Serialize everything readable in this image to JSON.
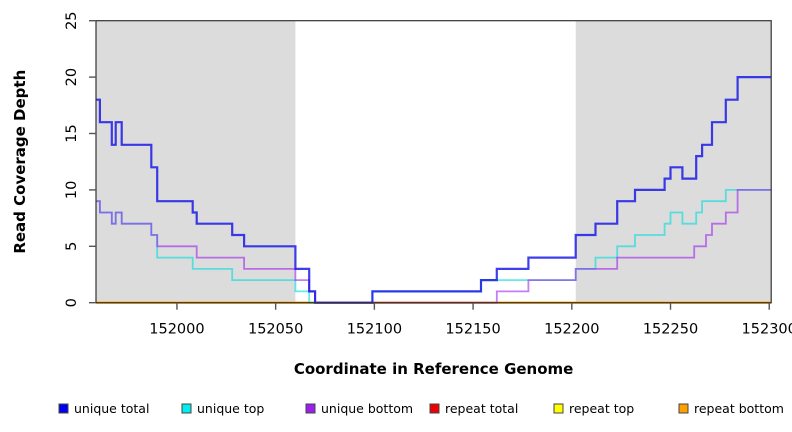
{
  "chart_data": {
    "type": "line",
    "subtype": "step-after-coverage-plot",
    "title": "",
    "xlabel": "Coordinate in Reference Genome",
    "ylabel": "Read Coverage Depth",
    "xlim": [
      151959,
      152301
    ],
    "ylim": [
      0,
      25
    ],
    "xticks": [
      152000,
      152050,
      152100,
      152150,
      152200,
      152250,
      152300
    ],
    "yticks": [
      0,
      5,
      10,
      15,
      20,
      25
    ],
    "grid": false,
    "step": "after",
    "background_color": "#ffffff",
    "shaded_band_color": "#dcdcdc",
    "box_color": "#333333",
    "shaded_regions": [
      {
        "x0": 151959,
        "x1": 152060
      },
      {
        "x0": 152202,
        "x1": 152301
      }
    ],
    "series": [
      {
        "name": "repeat total",
        "color": "#dd0000",
        "opacity": 1,
        "width": 1.8,
        "points": [
          [
            151959,
            0
          ],
          [
            152301,
            0
          ]
        ]
      },
      {
        "name": "repeat top",
        "color": "#ffff00",
        "opacity": 1,
        "width": 1.8,
        "points": [
          [
            151959,
            0
          ],
          [
            152301,
            0
          ]
        ]
      },
      {
        "name": "repeat bottom",
        "color": "#ff9f00",
        "opacity": 1,
        "width": 2,
        "points": [
          [
            151959,
            0
          ],
          [
            152301,
            0
          ]
        ]
      },
      {
        "name": "unique top",
        "color": "#00dcdc",
        "opacity": 0.6,
        "width": 1.8,
        "points": [
          [
            151959,
            9
          ],
          [
            151961,
            8
          ],
          [
            151967,
            7
          ],
          [
            151969,
            8
          ],
          [
            151972,
            7
          ],
          [
            151987,
            6
          ],
          [
            151990,
            4
          ],
          [
            152008,
            3
          ],
          [
            152028,
            2
          ],
          [
            152060,
            1
          ],
          [
            152067,
            0
          ],
          [
            152099,
            1
          ],
          [
            152154,
            2
          ],
          [
            152202,
            3
          ],
          [
            152212,
            4
          ],
          [
            152223,
            5
          ],
          [
            152232,
            6
          ],
          [
            152247,
            7
          ],
          [
            152250,
            8
          ],
          [
            152256,
            7
          ],
          [
            152263,
            8
          ],
          [
            152266,
            9
          ],
          [
            152278,
            10
          ],
          [
            152301,
            10
          ]
        ]
      },
      {
        "name": "unique bottom",
        "color": "#9b1fee",
        "opacity": 0.58,
        "width": 1.8,
        "points": [
          [
            151959,
            9
          ],
          [
            151961,
            8
          ],
          [
            151967,
            7
          ],
          [
            151969,
            8
          ],
          [
            151972,
            7
          ],
          [
            151987,
            6
          ],
          [
            151990,
            5
          ],
          [
            152010,
            4
          ],
          [
            152034,
            3
          ],
          [
            152060,
            2
          ],
          [
            152067,
            1
          ],
          [
            152070,
            0
          ],
          [
            152162,
            1
          ],
          [
            152178,
            2
          ],
          [
            152202,
            3
          ],
          [
            152223,
            4
          ],
          [
            152262,
            5
          ],
          [
            152268,
            6
          ],
          [
            152271,
            7
          ],
          [
            152278,
            8
          ],
          [
            152284,
            10
          ],
          [
            152301,
            10
          ]
        ]
      },
      {
        "name": "unique total",
        "color": "#1414e8",
        "opacity": 0.82,
        "width": 2.2,
        "points": [
          [
            151959,
            18
          ],
          [
            151961,
            16
          ],
          [
            151967,
            14
          ],
          [
            151969,
            16
          ],
          [
            151972,
            14
          ],
          [
            151987,
            12
          ],
          [
            151990,
            9
          ],
          [
            152008,
            8
          ],
          [
            152010,
            7
          ],
          [
            152028,
            6
          ],
          [
            152034,
            5
          ],
          [
            152060,
            3
          ],
          [
            152067,
            1
          ],
          [
            152070,
            0
          ],
          [
            152099,
            1
          ],
          [
            152154,
            2
          ],
          [
            152162,
            3
          ],
          [
            152178,
            4
          ],
          [
            152202,
            6
          ],
          [
            152212,
            7
          ],
          [
            152223,
            9
          ],
          [
            152232,
            10
          ],
          [
            152247,
            11
          ],
          [
            152250,
            12
          ],
          [
            152256,
            11
          ],
          [
            152263,
            13
          ],
          [
            152266,
            14
          ],
          [
            152271,
            16
          ],
          [
            152278,
            18
          ],
          [
            152284,
            20
          ],
          [
            152301,
            20
          ]
        ]
      }
    ],
    "legend": {
      "position": "bottom",
      "items": [
        {
          "label": "unique total",
          "color": "#0000ee"
        },
        {
          "label": "unique top",
          "color": "#00eeee"
        },
        {
          "label": "unique bottom",
          "color": "#9b1fee"
        },
        {
          "label": "repeat total",
          "color": "#ee0000"
        },
        {
          "label": "repeat top",
          "color": "#ffff00"
        },
        {
          "label": "repeat bottom",
          "color": "#ff9f00"
        }
      ]
    }
  },
  "layout_text": {
    "x_axis_title": "Coordinate in Reference Genome",
    "y_axis_title": "Read Coverage Depth"
  }
}
